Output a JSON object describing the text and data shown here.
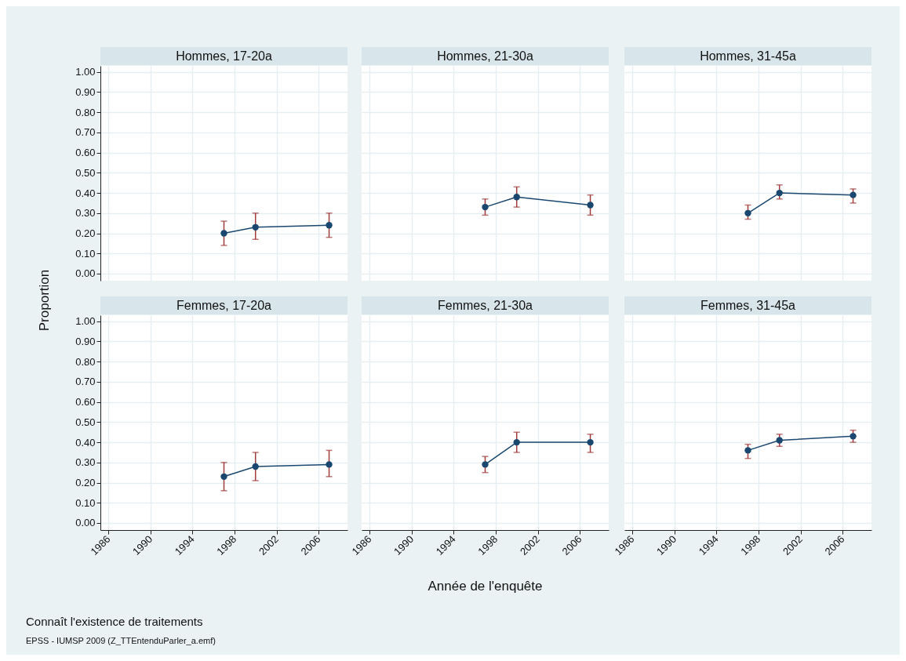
{
  "chart_data": [
    {
      "type": "line",
      "title": "Hommes, 17-20a",
      "ylabel": "Proportion",
      "x": [
        1997,
        2000,
        2007
      ],
      "values": [
        0.2,
        0.23,
        0.24
      ],
      "errors": [
        [
          0.14,
          0.26
        ],
        [
          0.17,
          0.3
        ],
        [
          0.18,
          0.3
        ]
      ],
      "color": "#1a476f",
      "xlim": [
        1985.25,
        2008.75
      ],
      "ylim": [
        -0.035,
        1.03
      ],
      "xticks": [
        1986,
        1990,
        1994,
        1998,
        2002,
        2006
      ],
      "yticks": [
        {
          "value": 0,
          "label": "0.00"
        },
        {
          "value": 0.1,
          "label": "0.10"
        },
        {
          "value": 0.2,
          "label": "0.20"
        },
        {
          "value": 0.3,
          "label": "0.30"
        },
        {
          "value": 0.4,
          "label": "0.40"
        },
        {
          "value": 0.5,
          "label": "0.50"
        },
        {
          "value": 0.6,
          "label": "0.60"
        },
        {
          "value": 0.7,
          "label": "0.70"
        },
        {
          "value": 0.8,
          "label": "0.80"
        },
        {
          "value": 0.9,
          "label": "0.90"
        },
        {
          "value": 1,
          "label": "1.00"
        }
      ],
      "grid": true,
      "marker": "circle",
      "line_style": "solid",
      "tick_labels": "y"
    },
    {
      "type": "line",
      "title": "Hommes, 21-30a",
      "x": [
        1997,
        2000,
        2007
      ],
      "values": [
        0.33,
        0.38,
        0.34
      ],
      "errors": [
        [
          0.29,
          0.37
        ],
        [
          0.33,
          0.43
        ],
        [
          0.29,
          0.39
        ]
      ],
      "color": "#1a476f",
      "xlim": [
        1985.25,
        2008.75
      ],
      "ylim": [
        -0.035,
        1.03
      ],
      "xticks": [
        1986,
        1990,
        1994,
        1998,
        2002,
        2006
      ],
      "yticks": [
        {
          "value": 0,
          "label": null
        },
        {
          "value": 0.1,
          "label": null
        },
        {
          "value": 0.2,
          "label": null
        },
        {
          "value": 0.3,
          "label": null
        },
        {
          "value": 0.4,
          "label": null
        },
        {
          "value": 0.5,
          "label": null
        },
        {
          "value": 0.6,
          "label": null
        },
        {
          "value": 0.7,
          "label": null
        },
        {
          "value": 0.8,
          "label": null
        },
        {
          "value": 0.9,
          "label": null
        },
        {
          "value": 1,
          "label": null
        }
      ],
      "grid": true,
      "marker": "circle",
      "line_style": "solid",
      "tick_labels": false
    },
    {
      "type": "line",
      "title": "Hommes, 31-45a",
      "x": [
        1997,
        2000,
        2007
      ],
      "values": [
        0.3,
        0.4,
        0.39
      ],
      "errors": [
        [
          0.27,
          0.34
        ],
        [
          0.37,
          0.44
        ],
        [
          0.35,
          0.42
        ]
      ],
      "color": "#1a476f",
      "xlim": [
        1985.25,
        2008.75
      ],
      "ylim": [
        -0.035,
        1.03
      ],
      "xticks": [
        1986,
        1990,
        1994,
        1998,
        2002,
        2006
      ],
      "yticks": [
        {
          "value": 0,
          "label": null
        },
        {
          "value": 0.1,
          "label": null
        },
        {
          "value": 0.2,
          "label": null
        },
        {
          "value": 0.3,
          "label": null
        },
        {
          "value": 0.4,
          "label": null
        },
        {
          "value": 0.5,
          "label": null
        },
        {
          "value": 0.6,
          "label": null
        },
        {
          "value": 0.7,
          "label": null
        },
        {
          "value": 0.8,
          "label": null
        },
        {
          "value": 0.9,
          "label": null
        },
        {
          "value": 1,
          "label": null
        }
      ],
      "grid": true,
      "marker": "circle",
      "line_style": "solid",
      "tick_labels": false
    },
    {
      "type": "line",
      "title": "Femmes, 17-20a",
      "annotations": [
        "Connaît l'existence de traitements",
        "EPSS - IUMSP 2009 (Z_TTEntenduParler_a.emf)"
      ],
      "x": [
        1997,
        2000,
        2007
      ],
      "values": [
        0.23,
        0.28,
        0.29
      ],
      "errors": [
        [
          0.16,
          0.3
        ],
        [
          0.21,
          0.35
        ],
        [
          0.23,
          0.36
        ]
      ],
      "color": "#1a476f",
      "xlim": [
        1985.25,
        2008.75
      ],
      "ylim": [
        -0.035,
        1.03
      ],
      "xticks": [
        1986,
        1990,
        1994,
        1998,
        2002,
        2006
      ],
      "yticks": [
        {
          "value": 0,
          "label": "0.00"
        },
        {
          "value": 0.1,
          "label": "0.10"
        },
        {
          "value": 0.2,
          "label": "0.20"
        },
        {
          "value": 0.3,
          "label": "0.30"
        },
        {
          "value": 0.4,
          "label": "0.40"
        },
        {
          "value": 0.5,
          "label": "0.50"
        },
        {
          "value": 0.6,
          "label": "0.60"
        },
        {
          "value": 0.7,
          "label": "0.70"
        },
        {
          "value": 0.8,
          "label": "0.80"
        },
        {
          "value": 0.9,
          "label": "0.90"
        },
        {
          "value": 1,
          "label": "1.00"
        }
      ],
      "grid": true,
      "marker": "circle",
      "line_style": "solid"
    },
    {
      "type": "line",
      "title": "Femmes, 21-30a",
      "xlabel": "Année de l'enquête",
      "x": [
        1997,
        2000,
        2007
      ],
      "values": [
        0.29,
        0.4,
        0.4
      ],
      "errors": [
        [
          0.25,
          0.33
        ],
        [
          0.35,
          0.45
        ],
        [
          0.35,
          0.44
        ]
      ],
      "color": "#1a476f",
      "xlim": [
        1985.25,
        2008.75
      ],
      "ylim": [
        -0.035,
        1.03
      ],
      "xticks": [
        1986,
        1990,
        1994,
        1998,
        2002,
        2006
      ],
      "yticks": [
        {
          "value": 0,
          "label": null
        },
        {
          "value": 0.1,
          "label": null
        },
        {
          "value": 0.2,
          "label": null
        },
        {
          "value": 0.3,
          "label": null
        },
        {
          "value": 0.4,
          "label": null
        },
        {
          "value": 0.5,
          "label": null
        },
        {
          "value": 0.6,
          "label": null
        },
        {
          "value": 0.7,
          "label": null
        },
        {
          "value": 0.8,
          "label": null
        },
        {
          "value": 0.9,
          "label": null
        },
        {
          "value": 1,
          "label": null
        }
      ],
      "grid": true,
      "marker": "circle",
      "line_style": "solid",
      "tick_labels": "x"
    },
    {
      "type": "line",
      "title": "Femmes, 31-45a",
      "x": [
        1997,
        2000,
        2007
      ],
      "values": [
        0.36,
        0.41,
        0.43
      ],
      "errors": [
        [
          0.32,
          0.39
        ],
        [
          0.38,
          0.44
        ],
        [
          0.4,
          0.46
        ]
      ],
      "color": "#1a476f",
      "xlim": [
        1985.25,
        2008.75
      ],
      "ylim": [
        -0.035,
        1.03
      ],
      "xticks": [
        1986,
        1990,
        1994,
        1998,
        2002,
        2006
      ],
      "yticks": [
        {
          "value": 0,
          "label": null
        },
        {
          "value": 0.1,
          "label": null
        },
        {
          "value": 0.2,
          "label": null
        },
        {
          "value": 0.3,
          "label": null
        },
        {
          "value": 0.4,
          "label": null
        },
        {
          "value": 0.5,
          "label": null
        },
        {
          "value": 0.6,
          "label": null
        },
        {
          "value": 0.7,
          "label": null
        },
        {
          "value": 0.8,
          "label": null
        },
        {
          "value": 0.9,
          "label": null
        },
        {
          "value": 1,
          "label": null
        }
      ],
      "grid": true,
      "marker": "circle",
      "line_style": "solid",
      "tick_labels": "x"
    }
  ]
}
